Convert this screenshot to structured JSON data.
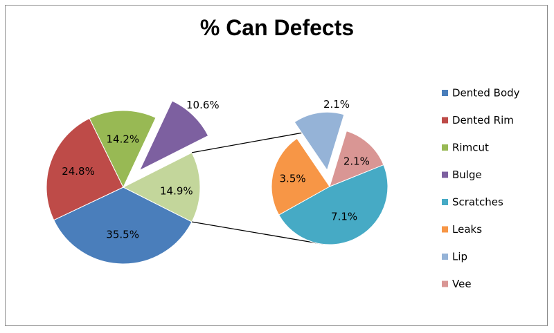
{
  "chart_data": {
    "type": "pie",
    "subtype": "pie-of-pie",
    "title": "% Can Defects",
    "categories": [
      "Dented Body",
      "Dented Rim",
      "Rimcut",
      "Bulge",
      "Scratches",
      "Leaks",
      "Lip",
      "Vee"
    ],
    "values": [
      35.5,
      24.8,
      14.2,
      10.6,
      7.1,
      3.5,
      2.1,
      2.1
    ],
    "labels": [
      "35.5%",
      "24.8%",
      "14.2%",
      "10.6%",
      "7.1%",
      "3.5%",
      "2.1%",
      "2.1%"
    ],
    "colors": [
      "#4a7ebb",
      "#be4b48",
      "#98b954",
      "#7d60a0",
      "#46aac5",
      "#f79646",
      "#95b3d7",
      "#d99694"
    ],
    "main_pie": {
      "slices": [
        "Dented Body",
        "Dented Rim",
        "Rimcut",
        "Bulge"
      ],
      "other_label": "14.9%",
      "other_value": 14.9,
      "other_color": "#c3d69b",
      "exploded": [
        "Bulge"
      ]
    },
    "secondary_pie": {
      "slices": [
        "Scratches",
        "Leaks",
        "Lip",
        "Vee"
      ],
      "exploded": [
        "Lip"
      ]
    },
    "legend_position": "right"
  }
}
